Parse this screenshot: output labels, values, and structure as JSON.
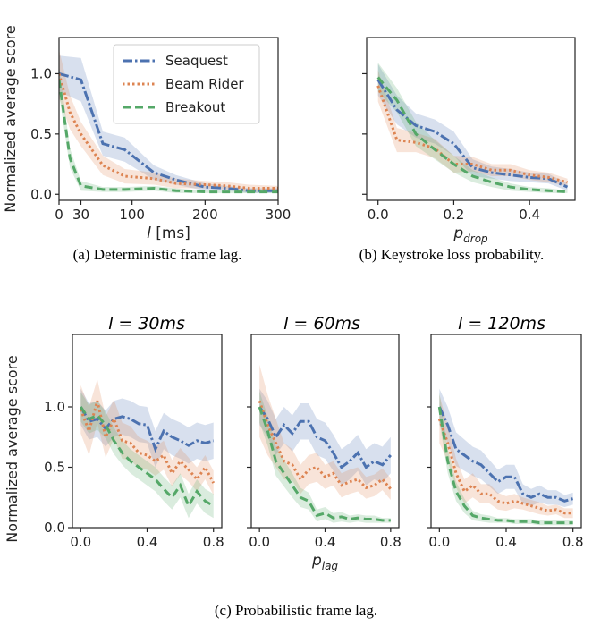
{
  "colors": {
    "seaquest": "#4c72b0",
    "beamrider": "#dd8452",
    "breakout": "#55a868"
  },
  "captions": {
    "a": "(a) Deterministic frame lag.",
    "b": "(b) Keystroke loss probability.",
    "c": "(c) Probabilistic frame lag."
  },
  "panel_titles": {
    "c1": "l = 30ms",
    "c2": "l = 60ms",
    "c3": "l = 120ms"
  },
  "chart_data": [
    {
      "id": "a",
      "type": "line",
      "xlabel": "l [ms]",
      "ylabel": "Normalized average score",
      "xlim": [
        0,
        300
      ],
      "ylim": [
        -0.05,
        1.3
      ],
      "xticks": [
        0,
        30,
        100,
        200,
        300
      ],
      "xtick_labels": [
        "0",
        "30",
        "100",
        "200",
        "300"
      ],
      "yticks": [
        0.0,
        0.5,
        1.0
      ],
      "ytick_labels": [
        "0.0",
        "0.5",
        "1.0"
      ],
      "legend": "top-right",
      "series": [
        {
          "name": "Seaquest",
          "key": "seaquest",
          "x": [
            0,
            30,
            60,
            90,
            130,
            160,
            200,
            230,
            260,
            300
          ],
          "values": [
            1.0,
            0.95,
            0.42,
            0.37,
            0.18,
            0.12,
            0.06,
            0.05,
            0.03,
            0.03
          ],
          "band": [
            0.15,
            0.18,
            0.1,
            0.1,
            0.06,
            0.04,
            0.03,
            0.02,
            0.02,
            0.02
          ]
        },
        {
          "name": "Beam Rider",
          "key": "beamrider",
          "x": [
            0,
            15,
            30,
            60,
            90,
            130,
            160,
            200,
            230,
            260,
            300
          ],
          "values": [
            1.0,
            0.68,
            0.5,
            0.24,
            0.15,
            0.13,
            0.09,
            0.08,
            0.07,
            0.05,
            0.05
          ],
          "band": [
            0.2,
            0.14,
            0.1,
            0.08,
            0.06,
            0.05,
            0.04,
            0.03,
            0.03,
            0.03,
            0.02
          ]
        },
        {
          "name": "Breakout",
          "key": "breakout",
          "x": [
            0,
            15,
            30,
            60,
            90,
            130,
            160,
            200,
            230,
            260,
            300
          ],
          "values": [
            0.95,
            0.3,
            0.07,
            0.04,
            0.04,
            0.05,
            0.03,
            0.02,
            0.02,
            0.02,
            0.02
          ],
          "band": [
            0.12,
            0.08,
            0.04,
            0.02,
            0.02,
            0.02,
            0.02,
            0.01,
            0.01,
            0.01,
            0.01
          ]
        }
      ]
    },
    {
      "id": "b",
      "type": "line",
      "xlabel": "p_drop",
      "ylabel": "",
      "xlim": [
        -0.03,
        0.52
      ],
      "ylim": [
        -0.05,
        1.3
      ],
      "xticks": [
        0.0,
        0.2,
        0.4
      ],
      "xtick_labels": [
        "0.0",
        "0.2",
        "0.4"
      ],
      "yticks": [
        0.0,
        0.5,
        1.0
      ],
      "ytick_labels": [
        "",
        "",
        ""
      ],
      "series": [
        {
          "name": "Seaquest",
          "key": "seaquest",
          "x": [
            0,
            0.05,
            0.1,
            0.15,
            0.2,
            0.25,
            0.3,
            0.35,
            0.4,
            0.45,
            0.5
          ],
          "values": [
            0.95,
            0.7,
            0.57,
            0.52,
            0.42,
            0.22,
            0.18,
            0.16,
            0.14,
            0.13,
            0.06
          ],
          "band": [
            0.13,
            0.12,
            0.1,
            0.1,
            0.1,
            0.07,
            0.05,
            0.05,
            0.04,
            0.04,
            0.03
          ]
        },
        {
          "name": "Beam Rider",
          "key": "beamrider",
          "x": [
            0,
            0.05,
            0.1,
            0.15,
            0.2,
            0.25,
            0.3,
            0.35,
            0.4,
            0.45,
            0.5
          ],
          "values": [
            0.9,
            0.45,
            0.43,
            0.38,
            0.25,
            0.25,
            0.2,
            0.2,
            0.16,
            0.14,
            0.1
          ],
          "band": [
            0.13,
            0.1,
            0.08,
            0.08,
            0.07,
            0.06,
            0.05,
            0.05,
            0.04,
            0.04,
            0.03
          ]
        },
        {
          "name": "Breakout",
          "key": "breakout",
          "x": [
            0,
            0.05,
            0.1,
            0.15,
            0.2,
            0.25,
            0.3,
            0.35,
            0.4,
            0.45,
            0.5
          ],
          "values": [
            0.97,
            0.78,
            0.5,
            0.37,
            0.25,
            0.15,
            0.1,
            0.06,
            0.04,
            0.03,
            0.02
          ],
          "band": [
            0.12,
            0.1,
            0.1,
            0.08,
            0.07,
            0.05,
            0.04,
            0.03,
            0.02,
            0.02,
            0.01
          ]
        }
      ]
    },
    {
      "id": "c1",
      "type": "line",
      "xlabel": "",
      "ylabel": "Normalized average score",
      "xlim": [
        -0.05,
        0.85
      ],
      "ylim": [
        0.0,
        1.6
      ],
      "xticks": [
        0.0,
        0.4,
        0.8
      ],
      "xtick_labels": [
        "0.0",
        "0.4",
        "0.8"
      ],
      "yticks": [
        0.0,
        0.5,
        1.0
      ],
      "ytick_labels": [
        "0.0",
        "0.5",
        "1.0"
      ],
      "series": [
        {
          "name": "Seaquest",
          "key": "seaquest",
          "x": [
            0,
            0.05,
            0.1,
            0.15,
            0.2,
            0.25,
            0.3,
            0.35,
            0.4,
            0.45,
            0.5,
            0.55,
            0.6,
            0.65,
            0.7,
            0.75,
            0.8
          ],
          "values": [
            1.0,
            0.88,
            0.9,
            0.82,
            0.9,
            0.92,
            0.9,
            0.86,
            0.85,
            0.65,
            0.8,
            0.75,
            0.72,
            0.68,
            0.72,
            0.7,
            0.72
          ],
          "band": [
            0.15,
            0.15,
            0.15,
            0.15,
            0.15,
            0.15,
            0.15,
            0.15,
            0.15,
            0.15,
            0.15,
            0.15,
            0.15,
            0.15,
            0.15,
            0.15,
            0.15
          ]
        },
        {
          "name": "Beam Rider",
          "key": "beamrider",
          "x": [
            0,
            0.05,
            0.1,
            0.15,
            0.2,
            0.25,
            0.3,
            0.35,
            0.4,
            0.45,
            0.5,
            0.55,
            0.6,
            0.65,
            0.7,
            0.75,
            0.8
          ],
          "values": [
            0.98,
            0.8,
            1.05,
            0.75,
            0.9,
            0.72,
            0.7,
            0.62,
            0.6,
            0.55,
            0.6,
            0.45,
            0.55,
            0.48,
            0.4,
            0.5,
            0.37
          ],
          "band": [
            0.2,
            0.2,
            0.18,
            0.17,
            0.16,
            0.15,
            0.14,
            0.13,
            0.12,
            0.12,
            0.12,
            0.11,
            0.11,
            0.1,
            0.1,
            0.1,
            0.1
          ]
        },
        {
          "name": "Breakout",
          "key": "breakout",
          "x": [
            0,
            0.05,
            0.1,
            0.15,
            0.2,
            0.25,
            0.3,
            0.35,
            0.4,
            0.45,
            0.5,
            0.55,
            0.6,
            0.65,
            0.7,
            0.75,
            0.8
          ],
          "values": [
            1.0,
            0.9,
            0.93,
            0.85,
            0.72,
            0.62,
            0.55,
            0.5,
            0.45,
            0.4,
            0.32,
            0.25,
            0.35,
            0.18,
            0.3,
            0.22,
            0.18
          ],
          "band": [
            0.12,
            0.12,
            0.12,
            0.11,
            0.11,
            0.1,
            0.1,
            0.1,
            0.1,
            0.1,
            0.1,
            0.1,
            0.1,
            0.1,
            0.1,
            0.1,
            0.1
          ]
        }
      ]
    },
    {
      "id": "c2",
      "type": "line",
      "xlabel": "p_lag",
      "ylabel": "",
      "xlim": [
        -0.05,
        0.85
      ],
      "ylim": [
        0.0,
        1.6
      ],
      "xticks": [
        0.0,
        0.4,
        0.8
      ],
      "xtick_labels": [
        "0.0",
        "0.4",
        "0.8"
      ],
      "yticks": [
        0.0,
        0.5,
        1.0
      ],
      "ytick_labels": [
        "",
        "",
        ""
      ],
      "series": [
        {
          "name": "Seaquest",
          "key": "seaquest",
          "x": [
            0,
            0.05,
            0.1,
            0.15,
            0.2,
            0.25,
            0.3,
            0.35,
            0.4,
            0.45,
            0.5,
            0.55,
            0.6,
            0.65,
            0.7,
            0.75,
            0.8
          ],
          "values": [
            1.0,
            0.9,
            0.75,
            0.85,
            0.78,
            0.88,
            0.88,
            0.75,
            0.72,
            0.62,
            0.5,
            0.55,
            0.62,
            0.5,
            0.55,
            0.52,
            0.6
          ],
          "band": [
            0.15,
            0.15,
            0.15,
            0.15,
            0.15,
            0.15,
            0.15,
            0.15,
            0.15,
            0.15,
            0.15,
            0.15,
            0.15,
            0.15,
            0.15,
            0.15,
            0.15
          ]
        },
        {
          "name": "Beam Rider",
          "key": "beamrider",
          "x": [
            0,
            0.05,
            0.1,
            0.15,
            0.2,
            0.25,
            0.3,
            0.35,
            0.4,
            0.45,
            0.5,
            0.55,
            0.6,
            0.65,
            0.7,
            0.75,
            0.8
          ],
          "values": [
            1.05,
            0.85,
            0.7,
            0.55,
            0.52,
            0.4,
            0.48,
            0.5,
            0.42,
            0.45,
            0.35,
            0.38,
            0.4,
            0.33,
            0.35,
            0.4,
            0.32
          ],
          "band": [
            0.3,
            0.25,
            0.2,
            0.15,
            0.13,
            0.12,
            0.12,
            0.12,
            0.1,
            0.1,
            0.1,
            0.1,
            0.1,
            0.09,
            0.09,
            0.09,
            0.09
          ]
        },
        {
          "name": "Breakout",
          "key": "breakout",
          "x": [
            0,
            0.05,
            0.1,
            0.15,
            0.2,
            0.25,
            0.3,
            0.35,
            0.4,
            0.45,
            0.5,
            0.55,
            0.6,
            0.65,
            0.7,
            0.75,
            0.8
          ],
          "values": [
            1.0,
            0.8,
            0.55,
            0.45,
            0.35,
            0.25,
            0.22,
            0.1,
            0.12,
            0.08,
            0.09,
            0.07,
            0.08,
            0.07,
            0.07,
            0.06,
            0.06
          ],
          "band": [
            0.13,
            0.12,
            0.12,
            0.11,
            0.1,
            0.08,
            0.07,
            0.05,
            0.05,
            0.04,
            0.04,
            0.03,
            0.03,
            0.03,
            0.03,
            0.02,
            0.02
          ]
        }
      ]
    },
    {
      "id": "c3",
      "type": "line",
      "xlabel": "",
      "ylabel": "",
      "xlim": [
        -0.05,
        0.85
      ],
      "ylim": [
        0.0,
        1.6
      ],
      "xticks": [
        0.0,
        0.4,
        0.8
      ],
      "xtick_labels": [
        "0.0",
        "0.4",
        "0.8"
      ],
      "yticks": [
        0.0,
        0.5,
        1.0
      ],
      "ytick_labels": [
        "",
        "",
        ""
      ],
      "series": [
        {
          "name": "Seaquest",
          "key": "seaquest",
          "x": [
            0,
            0.05,
            0.1,
            0.15,
            0.2,
            0.25,
            0.3,
            0.35,
            0.4,
            0.45,
            0.5,
            0.55,
            0.6,
            0.65,
            0.7,
            0.75,
            0.8
          ],
          "values": [
            1.0,
            0.85,
            0.65,
            0.6,
            0.55,
            0.52,
            0.45,
            0.38,
            0.42,
            0.42,
            0.28,
            0.25,
            0.28,
            0.25,
            0.25,
            0.22,
            0.24
          ],
          "band": [
            0.15,
            0.15,
            0.14,
            0.13,
            0.12,
            0.12,
            0.11,
            0.1,
            0.1,
            0.1,
            0.08,
            0.07,
            0.07,
            0.06,
            0.06,
            0.05,
            0.05
          ]
        },
        {
          "name": "Beam Rider",
          "key": "beamrider",
          "x": [
            0,
            0.05,
            0.1,
            0.15,
            0.2,
            0.25,
            0.3,
            0.35,
            0.4,
            0.45,
            0.5,
            0.55,
            0.6,
            0.65,
            0.7,
            0.75,
            0.8
          ],
          "values": [
            0.9,
            0.7,
            0.45,
            0.3,
            0.35,
            0.28,
            0.28,
            0.22,
            0.2,
            0.22,
            0.2,
            0.18,
            0.16,
            0.14,
            0.15,
            0.12,
            0.12
          ],
          "band": [
            0.2,
            0.15,
            0.12,
            0.1,
            0.1,
            0.08,
            0.08,
            0.07,
            0.06,
            0.06,
            0.05,
            0.05,
            0.05,
            0.04,
            0.04,
            0.04,
            0.04
          ]
        },
        {
          "name": "Breakout",
          "key": "breakout",
          "x": [
            0,
            0.05,
            0.1,
            0.15,
            0.2,
            0.25,
            0.3,
            0.35,
            0.4,
            0.45,
            0.5,
            0.55,
            0.6,
            0.65,
            0.7,
            0.75,
            0.8
          ],
          "values": [
            1.0,
            0.55,
            0.3,
            0.18,
            0.1,
            0.08,
            0.07,
            0.06,
            0.06,
            0.05,
            0.05,
            0.05,
            0.04,
            0.04,
            0.04,
            0.04,
            0.04
          ],
          "band": [
            0.12,
            0.1,
            0.08,
            0.06,
            0.04,
            0.03,
            0.03,
            0.02,
            0.02,
            0.02,
            0.02,
            0.02,
            0.02,
            0.02,
            0.02,
            0.02,
            0.02
          ]
        }
      ]
    }
  ]
}
